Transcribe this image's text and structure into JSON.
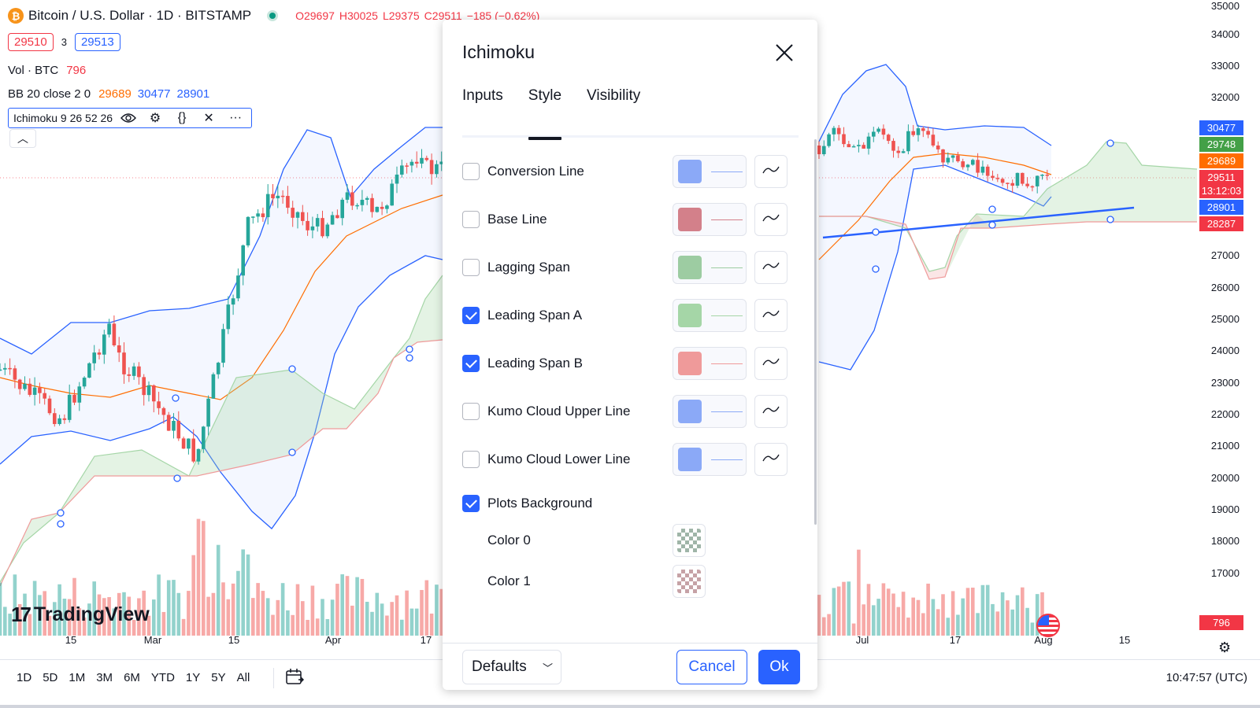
{
  "symbol": {
    "title": "Bitcoin / U.S. Dollar · 1D · BITSTAMP",
    "icon": "bitcoin-icon",
    "ohlc": {
      "open": "O29697",
      "high": "H30025",
      "low": "L29375",
      "close": "C29511",
      "change": "−185 (−0.62%)"
    },
    "sell_price": "29510",
    "spread": "3",
    "buy_price": "29513"
  },
  "indicators": {
    "volume": {
      "label": "Vol · BTC",
      "value": "796"
    },
    "bb": {
      "label": "BB 20 close 2 0",
      "basis": "29689",
      "upper": "30477",
      "lower": "28901"
    },
    "ichimoku": {
      "label": "Ichimoku 9 26 52 26"
    }
  },
  "y_axis": {
    "labels": [
      "35000",
      "34000",
      "33000",
      "32000",
      "27000",
      "26000",
      "25000",
      "24000",
      "23000",
      "22000",
      "21000",
      "20000",
      "19000",
      "18000",
      "17000"
    ],
    "tags": [
      {
        "value": "30477",
        "color": "#2962ff"
      },
      {
        "value": "29748",
        "color": "#43a047"
      },
      {
        "value": "29689",
        "color": "#ff6d00"
      },
      {
        "value": "29511",
        "color": "#f23645"
      },
      {
        "value": "13:12:03",
        "color": "#f23645"
      },
      {
        "value": "28901",
        "color": "#2962ff"
      },
      {
        "value": "28287",
        "color": "#f23645"
      }
    ],
    "volume_tag": "796"
  },
  "x_axis": {
    "labels": [
      "15",
      "Mar",
      "15",
      "Apr",
      "17",
      "Jul",
      "17",
      "Aug",
      "15"
    ]
  },
  "watermark": "TradingView",
  "bottom_bar": {
    "timeframes": [
      "1D",
      "5D",
      "1M",
      "3M",
      "6M",
      "YTD",
      "1Y",
      "5Y",
      "All"
    ],
    "time": "10:47:57 (UTC)"
  },
  "dialog": {
    "title": "Ichimoku",
    "tabs": [
      "Inputs",
      "Style",
      "Visibility"
    ],
    "active_tab": "Style",
    "rows": [
      {
        "label": "Conversion Line",
        "checked": false,
        "color": "#8ba9f7"
      },
      {
        "label": "Base Line",
        "checked": false,
        "color": "#d3808a"
      },
      {
        "label": "Lagging Span",
        "checked": false,
        "color": "#9dcca2"
      },
      {
        "label": "Leading Span A",
        "checked": true,
        "color": "#a5d6a7"
      },
      {
        "label": "Leading Span B",
        "checked": true,
        "color": "#ef9a9a"
      },
      {
        "label": "Kumo Cloud Upper Line",
        "checked": false,
        "color": "#8ba9f7"
      },
      {
        "label": "Kumo Cloud Lower Line",
        "checked": false,
        "color": "#8ba9f7"
      }
    ],
    "plots_background": {
      "label": "Plots Background",
      "checked": true
    },
    "colors": [
      {
        "label": "Color 0",
        "tint": "green"
      },
      {
        "label": "Color 1",
        "tint": "red"
      }
    ],
    "footer": {
      "defaults": "Defaults",
      "cancel": "Cancel",
      "ok": "Ok"
    }
  }
}
